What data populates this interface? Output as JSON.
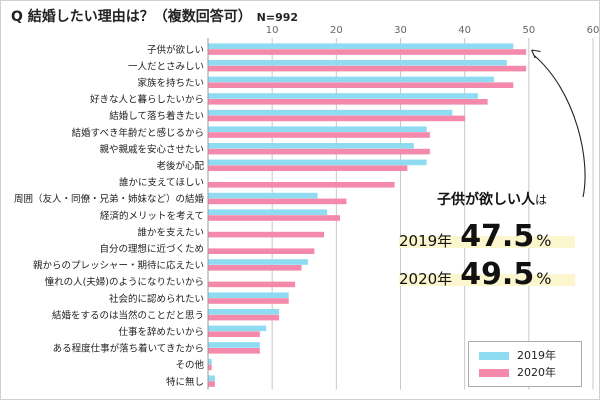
{
  "title": {
    "text": "Q 結婚したい理由は？（複数回答可）",
    "n": "N=992"
  },
  "colors": {
    "y2019": "#8fdcf2",
    "y2020": "#f489ab",
    "highlight": "#fcf6cf"
  },
  "callout": {
    "title_a": "子供が欲しい人",
    "title_b": "は",
    "line1": {
      "year": "2019年",
      "value": "47.5",
      "unit": "%"
    },
    "line2": {
      "year": "2020年",
      "value": "49.5",
      "unit": "%"
    }
  },
  "legend": {
    "a": "2019年",
    "b": "2020年"
  },
  "chart_data": {
    "type": "bar",
    "orientation": "horizontal",
    "xlim": [
      0,
      60
    ],
    "xticks": [
      10,
      20,
      30,
      40,
      50,
      60
    ],
    "categories": [
      "子供が欲しい",
      "一人だとさみしい",
      "家族を持ちたい",
      "好きな人と暮らしたいから",
      "結婚して落ち着きたい",
      "結婚すべき年齢だと感じるから",
      "親や親戚を安心させたい",
      "老後が心配",
      "誰かに支えてほしい",
      "周囲（友人・同僚・兄弟・姉妹など）の結婚",
      "経済的メリットを考えて",
      "誰かを支えたい",
      "自分の理想に近づくため",
      "親からのプレッシャー・期待に応えたい",
      "憧れの人(夫婦)のようになりたいから",
      "社会的に認められたい",
      "結婚をするのは当然のことだと思う",
      "仕事を辞めたいから",
      "ある程度仕事が落ち着いてきたから",
      "その他",
      "特に無し"
    ],
    "series": [
      {
        "name": "2019年",
        "values": [
          47.5,
          46.5,
          44.5,
          42,
          38,
          34,
          32,
          34,
          0,
          17,
          18.5,
          0,
          0,
          15.5,
          0,
          12.5,
          11,
          9,
          8,
          0.5,
          1
        ]
      },
      {
        "name": "2020年",
        "values": [
          49.5,
          49.5,
          47.5,
          43.5,
          40,
          34.5,
          34.5,
          31,
          29,
          21.5,
          20.5,
          18,
          16.5,
          14.5,
          13.5,
          12.5,
          11,
          8,
          8,
          0.5,
          1
        ]
      }
    ]
  }
}
